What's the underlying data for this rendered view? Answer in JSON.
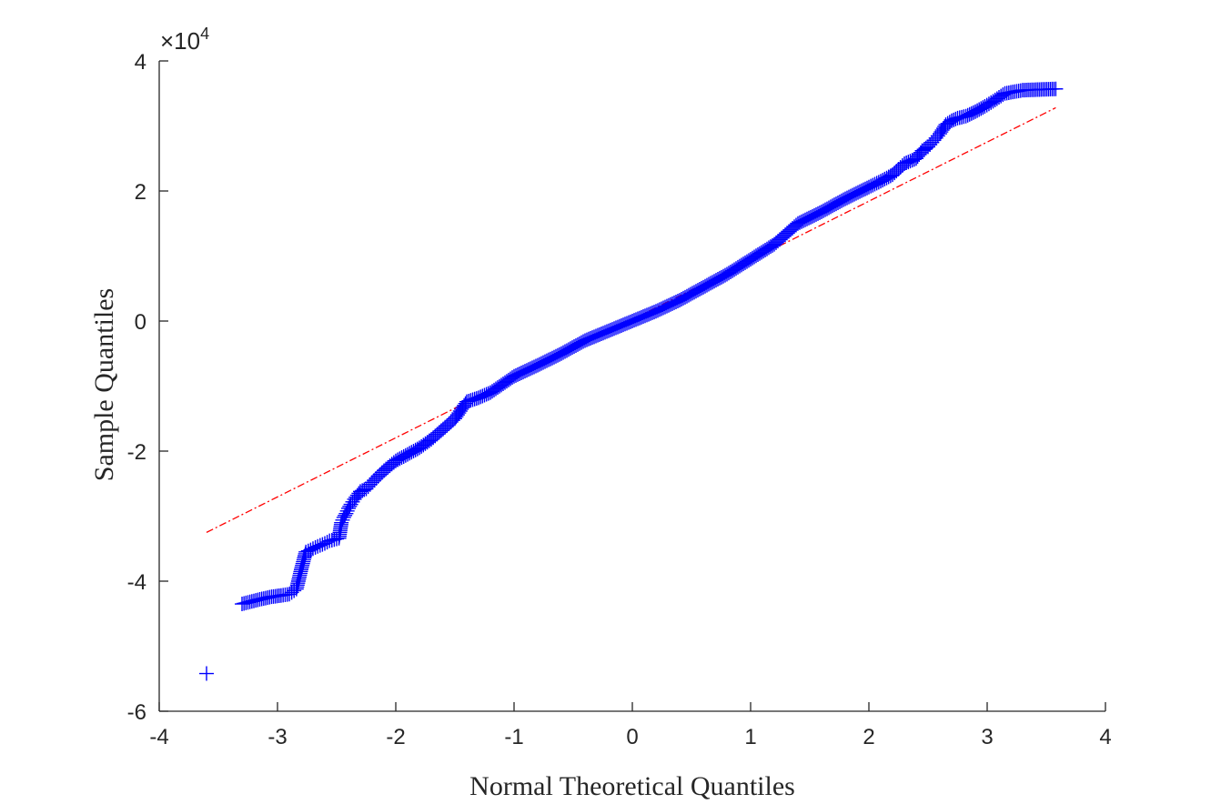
{
  "chart_data": {
    "type": "scatter",
    "title": "",
    "xlabel": "Normal Theoretical Quantiles",
    "ylabel": "Sample Quantiles",
    "xlim": [
      -4,
      4
    ],
    "ylim": [
      -6,
      4
    ],
    "xticks": [
      -4,
      -3,
      -2,
      -1,
      0,
      1,
      2,
      3,
      4
    ],
    "yticks": [
      -6,
      -4,
      -2,
      0,
      2,
      4
    ],
    "xtick_labels": [
      "-4",
      "-3",
      "-2",
      "-1",
      "0",
      "1",
      "2",
      "3",
      "4"
    ],
    "ytick_labels": [
      "-6",
      "-4",
      "-2",
      "0",
      "2",
      "4"
    ],
    "y_multiplier": {
      "base": "×10",
      "exponent": "4"
    },
    "grid": false,
    "box": false,
    "series": [
      {
        "marker": "+",
        "color": "#0000ff",
        "points": [
          [
            -3.6,
            -5.42
          ],
          [
            -3.3,
            -4.35
          ],
          [
            -3.15,
            -4.28
          ],
          [
            -3.05,
            -4.24
          ],
          [
            -2.97,
            -4.22
          ],
          [
            -2.9,
            -4.2
          ],
          [
            -2.84,
            -4.12
          ],
          [
            -2.8,
            -3.82
          ],
          [
            -2.76,
            -3.55
          ],
          [
            -2.72,
            -3.52
          ],
          [
            -2.68,
            -3.48
          ],
          [
            -2.64,
            -3.45
          ],
          [
            -2.6,
            -3.42
          ],
          [
            -2.56,
            -3.38
          ],
          [
            -2.52,
            -3.36
          ],
          [
            -2.48,
            -3.34
          ],
          [
            -2.46,
            -3.1
          ],
          [
            -2.44,
            -3.02
          ],
          [
            -2.42,
            -2.96
          ],
          [
            -2.4,
            -2.88
          ],
          [
            -2.38,
            -2.82
          ],
          [
            -2.35,
            -2.74
          ],
          [
            -2.3,
            -2.62
          ],
          [
            -2.25,
            -2.58
          ],
          [
            -2.2,
            -2.48
          ],
          [
            -2.1,
            -2.3
          ],
          [
            -2.0,
            -2.15
          ],
          [
            -1.9,
            -2.05
          ],
          [
            -1.8,
            -1.95
          ],
          [
            -1.7,
            -1.82
          ],
          [
            -1.6,
            -1.66
          ],
          [
            -1.5,
            -1.5
          ],
          [
            -1.4,
            -1.24
          ],
          [
            -1.3,
            -1.18
          ],
          [
            -1.2,
            -1.1
          ],
          [
            -1.0,
            -0.85
          ],
          [
            -0.8,
            -0.68
          ],
          [
            -0.6,
            -0.5
          ],
          [
            -0.4,
            -0.3
          ],
          [
            -0.2,
            -0.15
          ],
          [
            0.0,
            0.0
          ],
          [
            0.2,
            0.15
          ],
          [
            0.4,
            0.32
          ],
          [
            0.6,
            0.52
          ],
          [
            0.8,
            0.72
          ],
          [
            1.0,
            0.95
          ],
          [
            1.2,
            1.18
          ],
          [
            1.4,
            1.5
          ],
          [
            1.6,
            1.68
          ],
          [
            1.8,
            1.88
          ],
          [
            2.0,
            2.06
          ],
          [
            2.1,
            2.15
          ],
          [
            2.2,
            2.25
          ],
          [
            2.3,
            2.42
          ],
          [
            2.4,
            2.5
          ],
          [
            2.45,
            2.62
          ],
          [
            2.5,
            2.68
          ],
          [
            2.55,
            2.78
          ],
          [
            2.6,
            2.88
          ],
          [
            2.65,
            3.02
          ],
          [
            2.7,
            3.08
          ],
          [
            2.75,
            3.12
          ],
          [
            2.82,
            3.15
          ],
          [
            2.9,
            3.22
          ],
          [
            2.98,
            3.3
          ],
          [
            3.05,
            3.38
          ],
          [
            3.15,
            3.5
          ],
          [
            3.3,
            3.55
          ],
          [
            3.58,
            3.57
          ]
        ]
      }
    ],
    "reference_line": {
      "style": "dash-dot",
      "color": "#ff0000",
      "x": [
        -3.6,
        3.58
      ],
      "y": [
        -3.25,
        3.28
      ]
    }
  }
}
